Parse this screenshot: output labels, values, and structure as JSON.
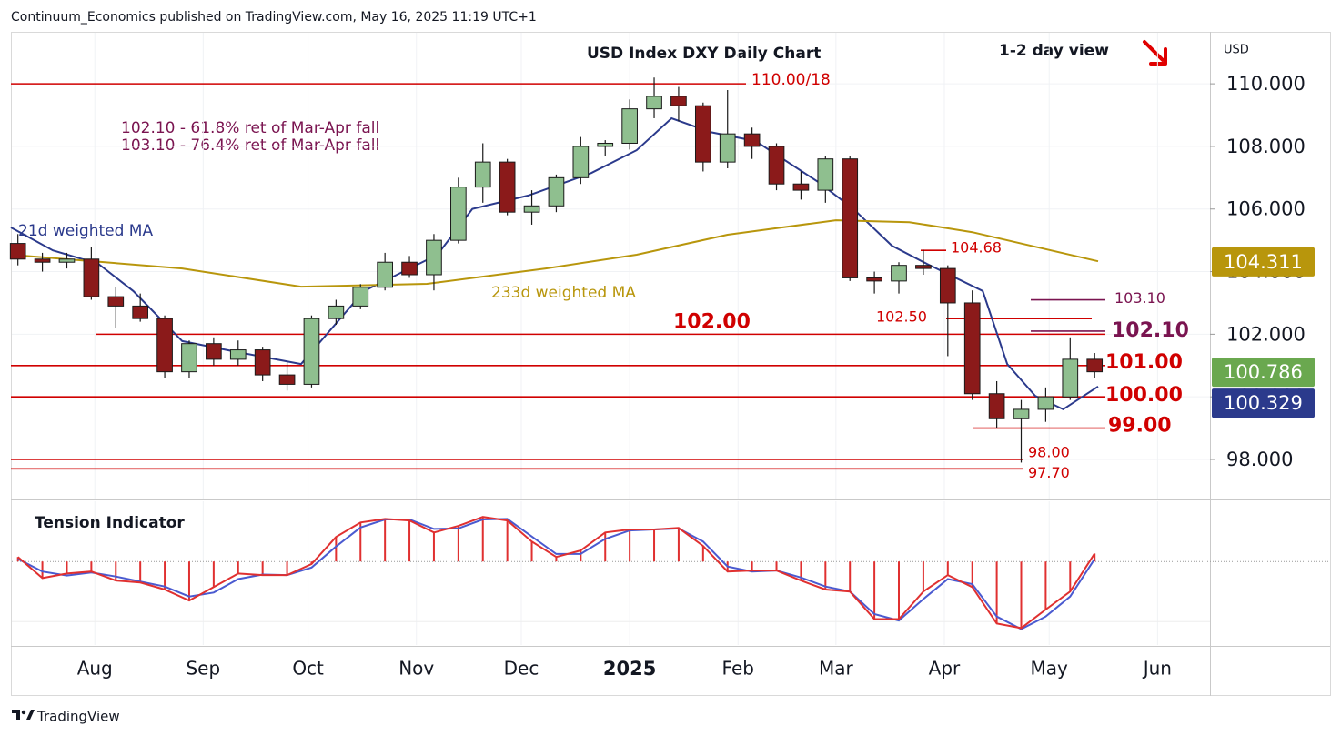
{
  "header": {
    "text": "Continuum_Economics published on TradingView.com, May 16, 2025 11:19 UTC+1"
  },
  "footer": {
    "brand": "TradingView"
  },
  "chart_data": [
    {
      "type": "candlestick",
      "title": "USD Index DXY Daily Chart",
      "view": "1-2 day view",
      "currency": "USD",
      "notes": [
        "102.10 - 61.8% ret of Mar-Apr fall",
        "103.10 - 76.4% ret of Mar-Apr fall"
      ],
      "xlim": [
        0,
        343
      ],
      "xticks": [
        {
          "value": 24,
          "label": "Aug"
        },
        {
          "value": 55,
          "label": "Sep"
        },
        {
          "value": 85,
          "label": "Oct"
        },
        {
          "value": 116,
          "label": "Nov"
        },
        {
          "value": 146,
          "label": "Dec"
        },
        {
          "value": 177,
          "label": "2025"
        },
        {
          "value": 208,
          "label": "Feb"
        },
        {
          "value": 236,
          "label": "Mar"
        },
        {
          "value": 267,
          "label": "Apr"
        },
        {
          "value": 297,
          "label": "May"
        },
        {
          "value": 328,
          "label": "Jun"
        }
      ],
      "ylim": [
        96.75,
        111.66
      ],
      "yticks": [
        {
          "value": 98,
          "label": "98.000"
        },
        {
          "value": 100,
          "label": "100.000"
        },
        {
          "value": 102,
          "label": "102.000"
        },
        {
          "value": 104,
          "label": "104.000"
        },
        {
          "value": 106,
          "label": "106.000"
        },
        {
          "value": 108,
          "label": "108.000"
        },
        {
          "value": 110,
          "label": "110.000"
        }
      ],
      "grid": true,
      "up_color": "#8fbf8f",
      "down_color": "#8b1a1a",
      "edge_color": "#1a1a1a",
      "x": [
        2,
        9,
        16,
        23,
        30,
        37,
        44,
        51,
        58,
        65,
        72,
        79,
        86,
        93,
        100,
        107,
        114,
        121,
        128,
        135,
        142,
        149,
        156,
        163,
        170,
        177,
        184,
        191,
        198,
        205,
        212,
        219,
        226,
        233,
        240,
        247,
        254,
        261,
        268,
        275,
        282,
        289,
        296,
        303,
        310
      ],
      "open": [
        104.9,
        104.4,
        104.3,
        104.4,
        103.2,
        102.9,
        102.5,
        100.8,
        101.7,
        101.2,
        101.5,
        100.7,
        100.4,
        102.5,
        102.9,
        103.5,
        104.3,
        103.9,
        105.0,
        106.7,
        107.5,
        105.9,
        106.1,
        107.0,
        108.0,
        108.1,
        109.2,
        109.6,
        109.3,
        107.5,
        108.4,
        108.0,
        106.8,
        106.6,
        107.6,
        103.8,
        103.7,
        104.2,
        104.1,
        103.0,
        100.1,
        99.3,
        99.6,
        100.0,
        101.2
      ],
      "high": [
        105.2,
        104.6,
        104.6,
        104.8,
        103.5,
        103.3,
        102.6,
        101.8,
        101.9,
        101.8,
        101.6,
        101.1,
        102.6,
        103.1,
        103.6,
        104.6,
        104.5,
        105.2,
        107.0,
        108.1,
        107.6,
        106.6,
        107.1,
        108.3,
        108.2,
        109.5,
        110.2,
        109.9,
        109.4,
        109.8,
        108.6,
        108.1,
        107.2,
        107.7,
        107.7,
        104.0,
        104.3,
        104.7,
        104.2,
        103.4,
        100.5,
        99.9,
        100.3,
        101.9,
        101.4
      ],
      "low": [
        104.2,
        104.0,
        104.1,
        103.1,
        102.2,
        102.4,
        100.6,
        100.6,
        101.0,
        101.0,
        100.5,
        100.2,
        100.3,
        102.3,
        102.8,
        103.4,
        103.8,
        103.4,
        104.9,
        106.2,
        105.8,
        105.5,
        105.9,
        106.8,
        107.7,
        107.9,
        108.9,
        108.8,
        107.2,
        107.3,
        107.6,
        106.6,
        106.3,
        106.2,
        103.7,
        103.3,
        103.3,
        103.9,
        101.3,
        99.9,
        99.0,
        97.9,
        99.2,
        99.9,
        100.6
      ],
      "close": [
        104.4,
        104.3,
        104.4,
        103.2,
        102.9,
        102.5,
        100.8,
        101.7,
        101.2,
        101.5,
        100.7,
        100.4,
        102.5,
        102.9,
        103.5,
        104.3,
        103.9,
        105.0,
        106.7,
        107.5,
        105.9,
        106.1,
        107.0,
        108.0,
        108.1,
        109.2,
        109.6,
        109.3,
        107.5,
        108.4,
        108.0,
        106.8,
        106.6,
        107.6,
        103.8,
        103.7,
        104.2,
        104.1,
        103.0,
        100.1,
        99.3,
        99.6,
        100.0,
        101.2,
        100.8
      ],
      "moving_averages": [
        {
          "name": "21d weighted MA",
          "color": "#2b3a8c",
          "x": [
            0,
            12,
            25,
            35,
            49,
            62,
            83,
            101,
            122,
            132,
            148,
            166,
            179,
            189,
            200,
            213,
            231,
            241,
            252,
            262,
            278,
            285,
            293,
            301,
            311
          ],
          "values": [
            105.41,
            104.68,
            104.25,
            103.38,
            101.78,
            101.49,
            101.05,
            103.38,
            104.54,
            106.0,
            106.43,
            107.15,
            107.88,
            108.9,
            108.46,
            108.17,
            106.86,
            106.0,
            104.83,
            104.25,
            103.38,
            101.05,
            100.03,
            99.6,
            100.33
          ]
        },
        {
          "name": "233d weighted MA",
          "color": "#b8960c",
          "x": [
            0,
            49,
            83,
            119,
            153,
            179,
            205,
            236,
            257,
            275,
            311
          ],
          "values": [
            104.54,
            104.1,
            103.52,
            103.61,
            104.1,
            104.54,
            105.18,
            105.64,
            105.58,
            105.26,
            104.33
          ]
        }
      ],
      "levels": [
        {
          "value": 110.0,
          "label": "110.00/18",
          "color": "#d00000"
        },
        {
          "value": 104.68,
          "label": "104.68",
          "color": "#d00000"
        },
        {
          "value": 103.1,
          "label": "103.10",
          "color": "#7a1450"
        },
        {
          "value": 102.5,
          "label": "102.50",
          "color": "#d00000"
        },
        {
          "value": 102.1,
          "label": "102.10",
          "color": "#7a1450"
        },
        {
          "value": 102.0,
          "label": "102.00",
          "color": "#d00000"
        },
        {
          "value": 101.0,
          "label": "101.00",
          "color": "#d00000"
        },
        {
          "value": 100.0,
          "label": "100.00",
          "color": "#d00000"
        },
        {
          "value": 99.0,
          "label": "99.00",
          "color": "#d00000"
        },
        {
          "value": 98.0,
          "label": "98.00",
          "color": "#d00000"
        },
        {
          "value": 97.7,
          "label": "97.70",
          "color": "#d00000"
        }
      ],
      "price_labels": [
        {
          "value": 104.311,
          "color": "#b8960c"
        },
        {
          "value": 100.786,
          "color": "#6aa84f"
        },
        {
          "value": 100.329,
          "color": "#2b3a8c"
        }
      ]
    },
    {
      "type": "histogram",
      "title": "Tension Indicator",
      "xlim": [
        0,
        343
      ],
      "ylim": [
        -1.65,
        1.13
      ],
      "color": "#e03030",
      "signal_color": "#4a5ad0",
      "x": [
        2,
        9,
        16,
        23,
        30,
        37,
        44,
        51,
        58,
        65,
        72,
        79,
        86,
        93,
        100,
        107,
        114,
        121,
        128,
        135,
        142,
        149,
        156,
        163,
        170,
        177,
        184,
        191,
        198,
        205,
        212,
        219,
        226,
        233,
        240,
        247,
        254,
        261,
        268,
        275,
        282,
        289,
        296,
        303,
        310
      ],
      "values": [
        0.09,
        -0.33,
        -0.24,
        -0.2,
        -0.38,
        -0.42,
        -0.56,
        -0.78,
        -0.51,
        -0.24,
        -0.27,
        -0.27,
        -0.05,
        0.49,
        0.78,
        0.85,
        0.82,
        0.58,
        0.71,
        0.89,
        0.82,
        0.4,
        0.09,
        0.22,
        0.58,
        0.64,
        0.64,
        0.67,
        0.31,
        -0.2,
        -0.18,
        -0.18,
        -0.38,
        -0.56,
        -0.6,
        -1.15,
        -1.15,
        -0.6,
        -0.27,
        -0.51,
        -1.24,
        -1.33,
        -0.96,
        -0.6,
        0.16
      ],
      "signal": [
        0.05,
        -0.2,
        -0.28,
        -0.22,
        -0.3,
        -0.4,
        -0.5,
        -0.7,
        -0.62,
        -0.35,
        -0.26,
        -0.27,
        -0.12,
        0.3,
        0.68,
        0.84,
        0.84,
        0.65,
        0.66,
        0.84,
        0.85,
        0.5,
        0.15,
        0.15,
        0.45,
        0.62,
        0.64,
        0.66,
        0.4,
        -0.1,
        -0.2,
        -0.18,
        -0.32,
        -0.5,
        -0.6,
        -1.05,
        -1.18,
        -0.75,
        -0.35,
        -0.45,
        -1.1,
        -1.35,
        -1.1,
        -0.7,
        0.05
      ]
    }
  ]
}
